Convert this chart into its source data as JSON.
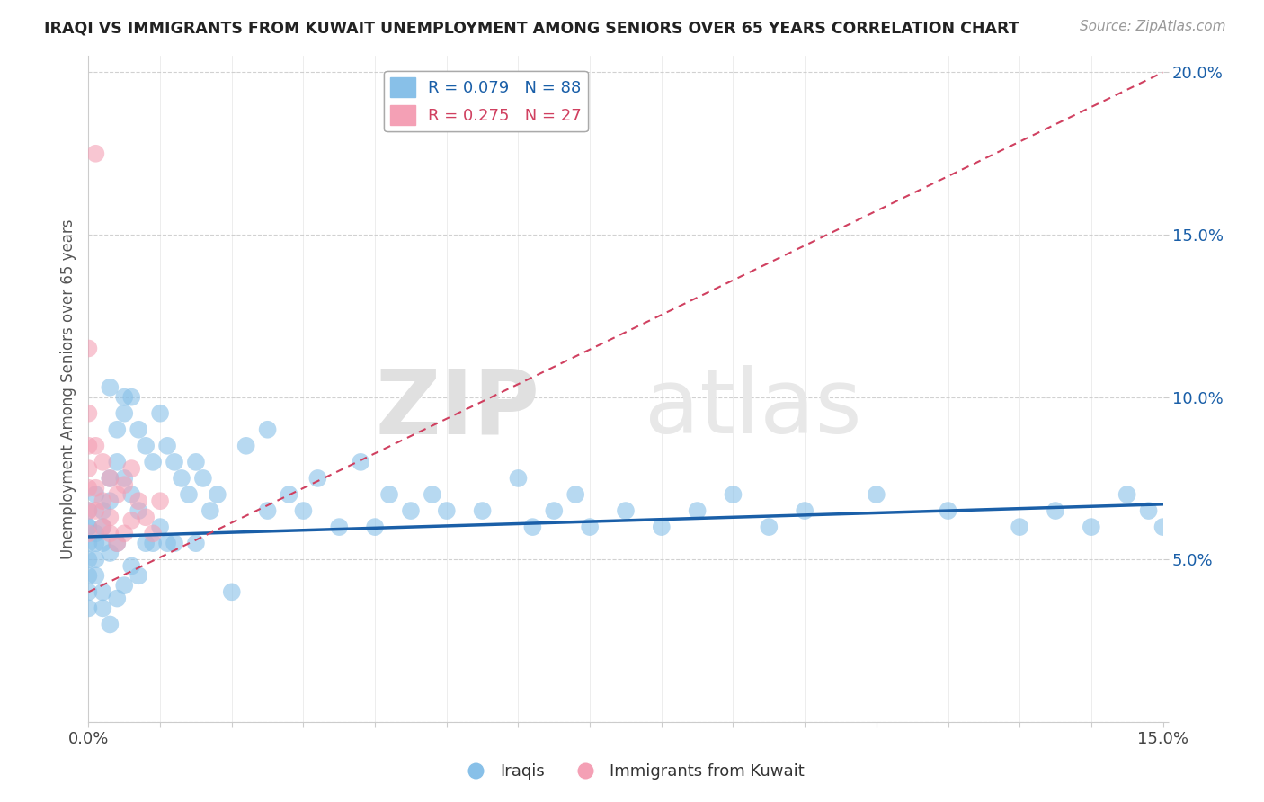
{
  "title": "IRAQI VS IMMIGRANTS FROM KUWAIT UNEMPLOYMENT AMONG SENIORS OVER 65 YEARS CORRELATION CHART",
  "source": "Source: ZipAtlas.com",
  "ylabel": "Unemployment Among Seniors over 65 years",
  "xlim": [
    0,
    0.15
  ],
  "ylim": [
    0.0,
    0.205
  ],
  "xticks": [
    0.0,
    0.05,
    0.1,
    0.15
  ],
  "yticks": [
    0.05,
    0.1,
    0.15,
    0.2
  ],
  "xticklabels_bottom": [
    "0.0%",
    "",
    "",
    "",
    "",
    "",
    "",
    "",
    "",
    "",
    "",
    "",
    "",
    "",
    "15.0%"
  ],
  "blue_color": "#88c0e8",
  "pink_color": "#f4a0b5",
  "blue_line_color": "#1a5fa8",
  "pink_line_color": "#d04060",
  "legend_label_blue": "Iraqis",
  "legend_label_pink": "Immigrants from Kuwait",
  "R_blue": 0.079,
  "N_blue": 88,
  "R_pink": 0.275,
  "N_pink": 27,
  "watermark_zip": "ZIP",
  "watermark_atlas": "atlas",
  "background_color": "#ffffff",
  "grid_color": "#cccccc",
  "blue_x": [
    0.0,
    0.0,
    0.0,
    0.0,
    0.0,
    0.0,
    0.0,
    0.0,
    0.001,
    0.001,
    0.001,
    0.001,
    0.001,
    0.002,
    0.002,
    0.002,
    0.002,
    0.002,
    0.003,
    0.003,
    0.003,
    0.003,
    0.004,
    0.004,
    0.004,
    0.004,
    0.005,
    0.005,
    0.005,
    0.006,
    0.006,
    0.006,
    0.007,
    0.007,
    0.007,
    0.008,
    0.008,
    0.009,
    0.009,
    0.01,
    0.01,
    0.011,
    0.011,
    0.012,
    0.012,
    0.013,
    0.014,
    0.015,
    0.015,
    0.016,
    0.017,
    0.018,
    0.02,
    0.022,
    0.025,
    0.025,
    0.028,
    0.03,
    0.032,
    0.035,
    0.038,
    0.04,
    0.042,
    0.045,
    0.048,
    0.05,
    0.055,
    0.06,
    0.062,
    0.065,
    0.068,
    0.07,
    0.075,
    0.08,
    0.085,
    0.09,
    0.095,
    0.1,
    0.11,
    0.12,
    0.13,
    0.135,
    0.14,
    0.145,
    0.148,
    0.15,
    0.005,
    0.003
  ],
  "blue_y": [
    0.065,
    0.06,
    0.055,
    0.05,
    0.045,
    0.04,
    0.035,
    0.06,
    0.058,
    0.055,
    0.05,
    0.045,
    0.07,
    0.065,
    0.06,
    0.055,
    0.04,
    0.035,
    0.075,
    0.068,
    0.052,
    0.03,
    0.09,
    0.08,
    0.055,
    0.038,
    0.095,
    0.075,
    0.042,
    0.1,
    0.07,
    0.048,
    0.09,
    0.065,
    0.045,
    0.085,
    0.055,
    0.08,
    0.055,
    0.095,
    0.06,
    0.085,
    0.055,
    0.08,
    0.055,
    0.075,
    0.07,
    0.08,
    0.055,
    0.075,
    0.065,
    0.07,
    0.04,
    0.085,
    0.09,
    0.065,
    0.07,
    0.065,
    0.075,
    0.06,
    0.08,
    0.06,
    0.07,
    0.065,
    0.07,
    0.065,
    0.065,
    0.075,
    0.06,
    0.065,
    0.07,
    0.06,
    0.065,
    0.06,
    0.065,
    0.07,
    0.06,
    0.065,
    0.07,
    0.065,
    0.06,
    0.065,
    0.06,
    0.07,
    0.065,
    0.06,
    0.1,
    0.103
  ],
  "pink_x": [
    0.001,
    0.0,
    0.0,
    0.0,
    0.001,
    0.001,
    0.002,
    0.002,
    0.003,
    0.003,
    0.004,
    0.004,
    0.005,
    0.005,
    0.006,
    0.006,
    0.007,
    0.008,
    0.009,
    0.01,
    0.0,
    0.0,
    0.001,
    0.002,
    0.003,
    0.0,
    0.0
  ],
  "pink_y": [
    0.175,
    0.115,
    0.085,
    0.065,
    0.085,
    0.065,
    0.08,
    0.06,
    0.075,
    0.058,
    0.07,
    0.055,
    0.073,
    0.058,
    0.078,
    0.062,
    0.068,
    0.063,
    0.058,
    0.068,
    0.095,
    0.072,
    0.072,
    0.068,
    0.063,
    0.058,
    0.078
  ],
  "blue_trend_x": [
    0.0,
    0.15
  ],
  "blue_trend_y": [
    0.057,
    0.067
  ],
  "pink_trend_x": [
    0.0,
    0.15
  ],
  "pink_trend_y": [
    0.04,
    0.2
  ]
}
